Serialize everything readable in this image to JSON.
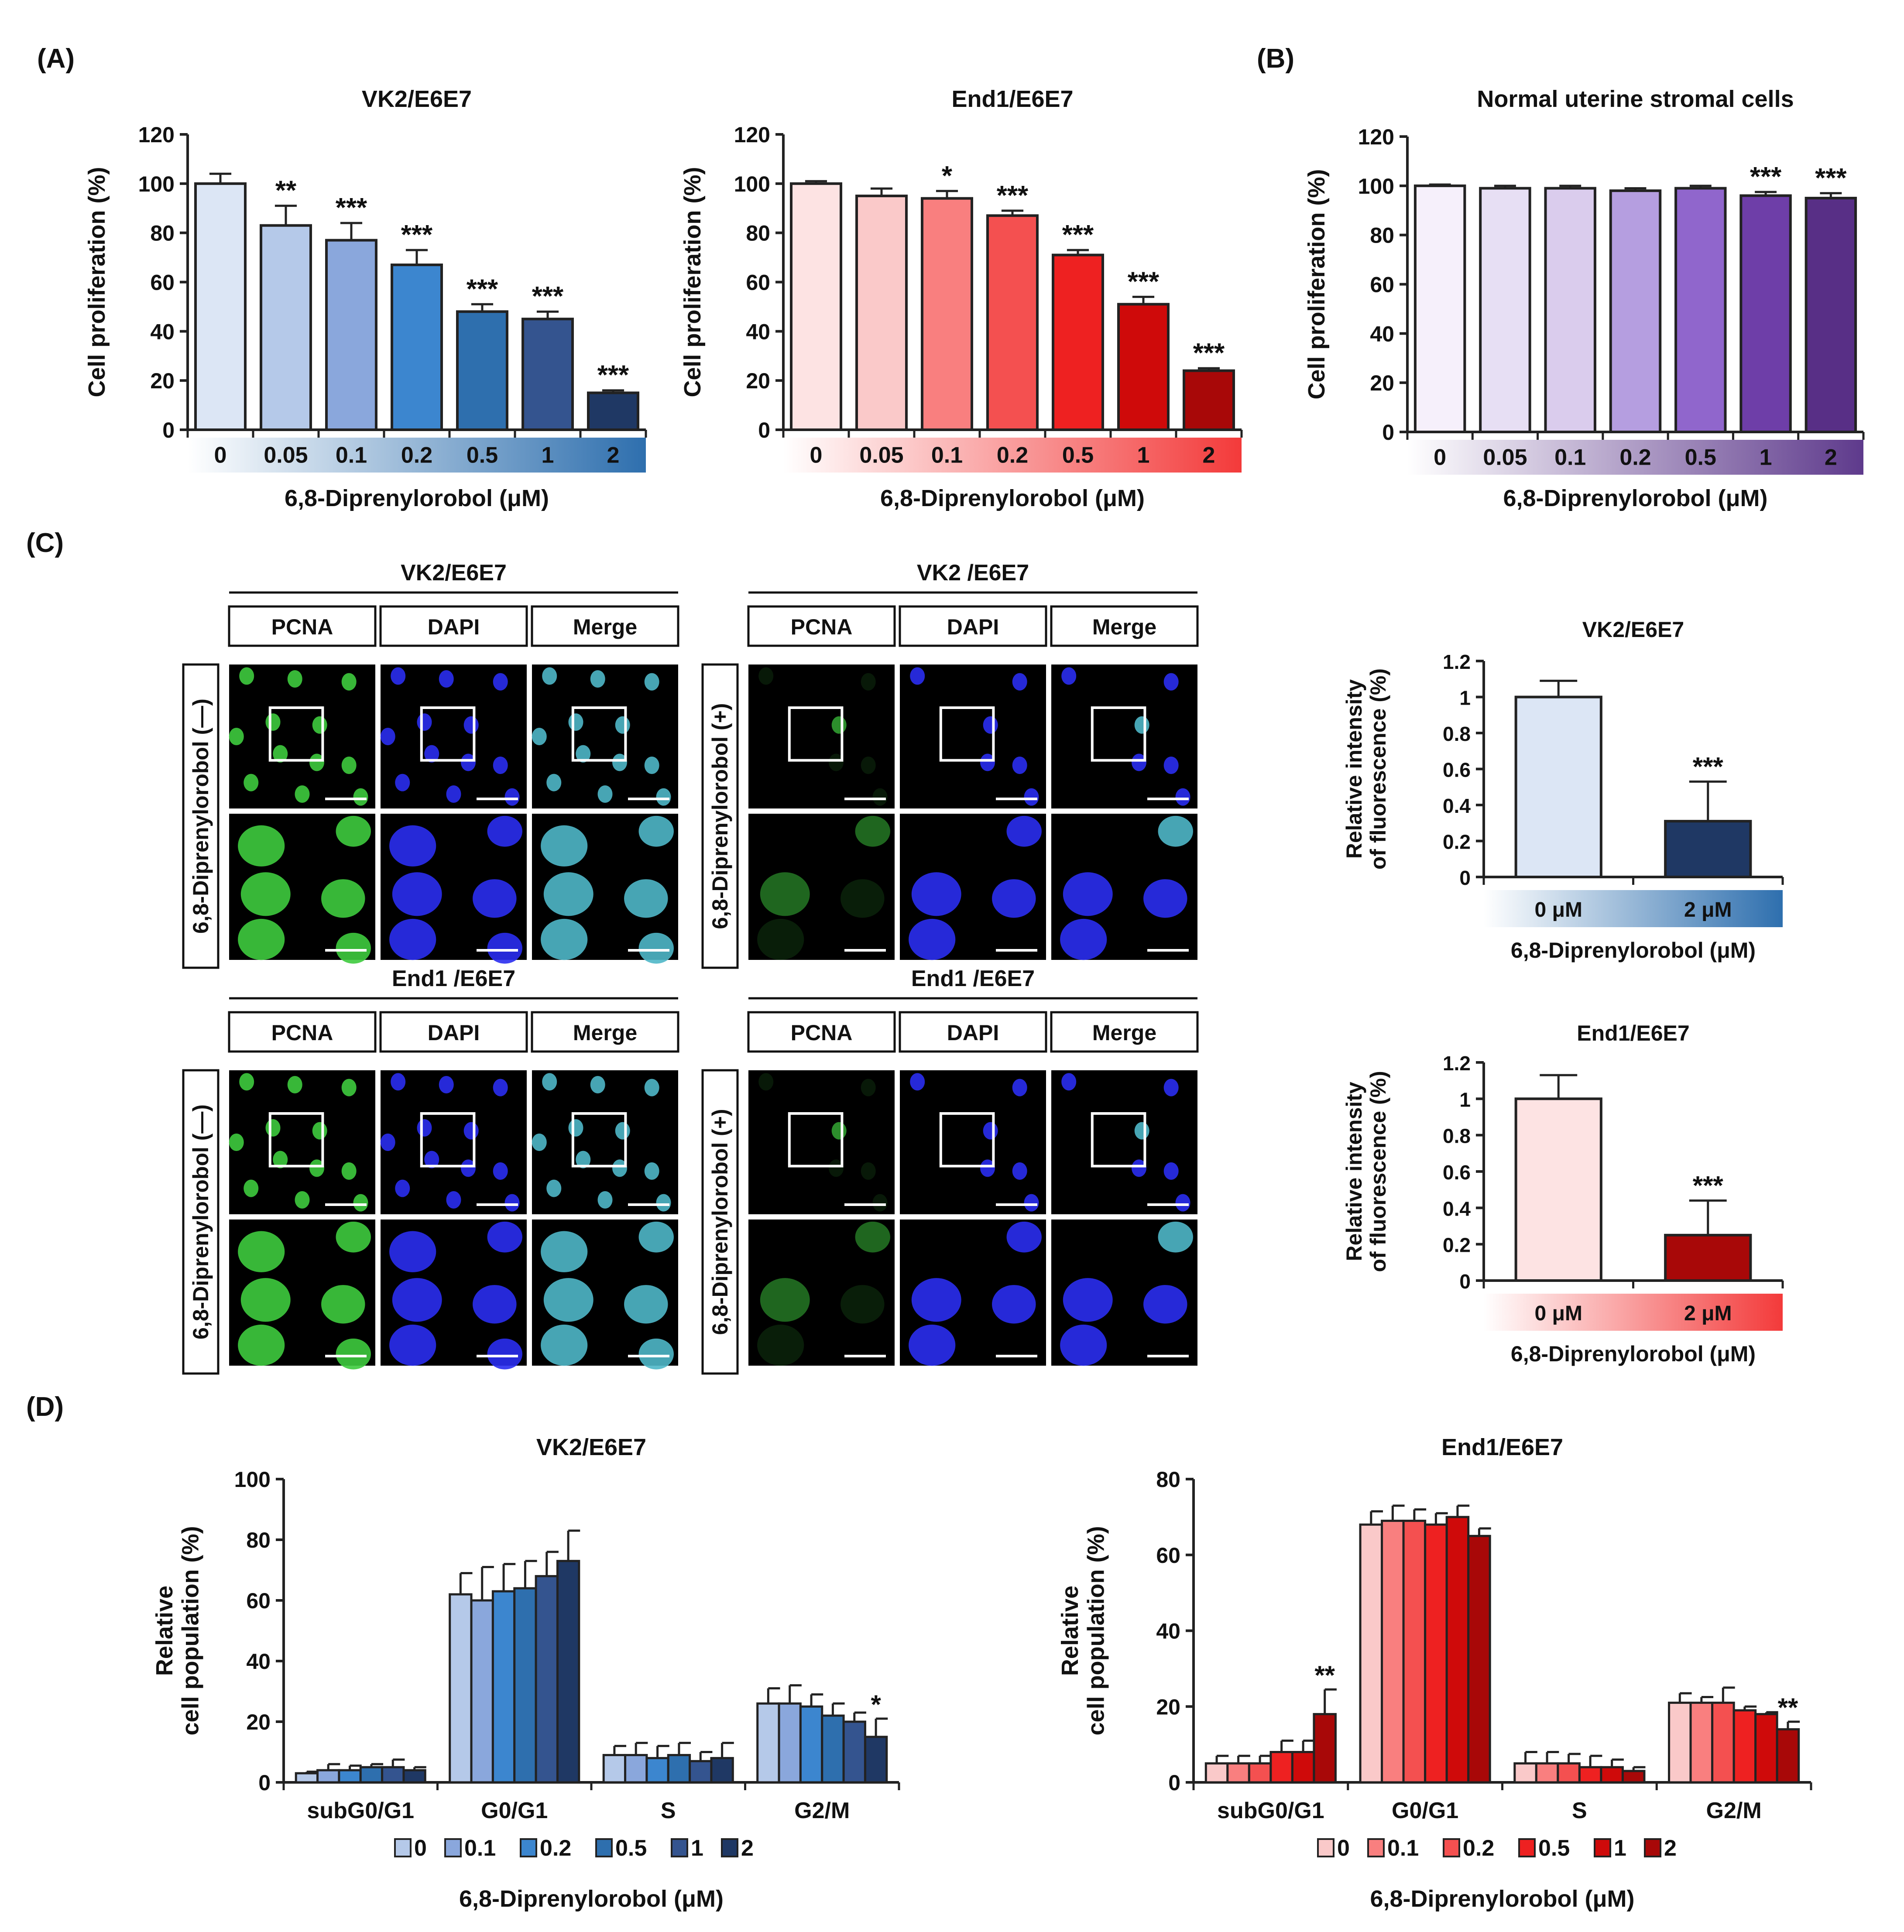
{
  "panels": {
    "A": "(A)",
    "B": "(B)",
    "C": "(C)",
    "D": "(D)"
  },
  "colors": {
    "vk2": [
      "#dce6f5",
      "#b5c9e9",
      "#8aa7dc",
      "#3c86cf",
      "#2e6fae",
      "#34548f",
      "#1f3864"
    ],
    "end1": [
      "#fde3e3",
      "#fac9c9",
      "#f97f7f",
      "#f45050",
      "#ee2121",
      "#cf0a0a",
      "#a80808"
    ],
    "normal": [
      "#f6f0fb",
      "#e7dff4",
      "#dacced",
      "#b59ee0",
      "#9066cc",
      "#6e3ea8",
      "#582f86"
    ],
    "vk2_gradient": [
      "#ffffff",
      "#2e6fae"
    ],
    "end1_gradient": [
      "#ffffff",
      "#f33a3a"
    ],
    "normal_gradient": [
      "#ffffff",
      "#5e3a8c"
    ],
    "green_nucleus": "#3ecb3e",
    "blue_nucleus": "#2a2ef0",
    "cyan_nucleus": "#4fb7c8"
  },
  "chart_data": [
    {
      "id": "A1",
      "type": "bar",
      "title": "VK2/E6E7",
      "xlabel": "6,8-Diprenylorobol (μM)",
      "ylabel": "Cell proliferation (%)",
      "ylim": [
        0,
        120
      ],
      "yticks": [
        0,
        20,
        40,
        60,
        80,
        100,
        120
      ],
      "categories": [
        "0",
        "0.05",
        "0.1",
        "0.2",
        "0.5",
        "1",
        "2"
      ],
      "values": [
        100,
        83,
        77,
        67,
        48,
        45,
        15
      ],
      "errors": [
        4,
        8,
        7,
        6,
        3,
        3,
        1
      ],
      "significance": [
        "",
        "**",
        "***",
        "***",
        "***",
        "***",
        "***"
      ],
      "palette": "vk2",
      "gradient": "vk2_gradient"
    },
    {
      "id": "A2",
      "type": "bar",
      "title": "End1/E6E7",
      "xlabel": "6,8-Diprenylorobol (μM)",
      "ylabel": "Cell proliferation (%)",
      "ylim": [
        0,
        120
      ],
      "yticks": [
        0,
        20,
        40,
        60,
        80,
        100,
        120
      ],
      "categories": [
        "0",
        "0.05",
        "0.1",
        "0.2",
        "0.5",
        "1",
        "2"
      ],
      "values": [
        100,
        95,
        94,
        87,
        71,
        51,
        24
      ],
      "errors": [
        1,
        3,
        3,
        2,
        2,
        3,
        1
      ],
      "significance": [
        "",
        "",
        "*",
        "***",
        "***",
        "***",
        "***"
      ],
      "palette": "end1",
      "gradient": "end1_gradient"
    },
    {
      "id": "B",
      "type": "bar",
      "title": "Normal uterine stromal cells",
      "xlabel": "6,8-Diprenylorobol (μM)",
      "ylabel": "Cell proliferation (%)",
      "ylim": [
        0,
        120
      ],
      "yticks": [
        0,
        20,
        40,
        60,
        80,
        100,
        120
      ],
      "categories": [
        "0",
        "0.05",
        "0.1",
        "0.2",
        "0.5",
        "1",
        "2"
      ],
      "values": [
        100,
        99,
        99,
        98,
        99,
        96,
        95
      ],
      "errors": [
        0.5,
        1,
        1,
        1,
        1,
        1.5,
        2
      ],
      "significance": [
        "",
        "",
        "",
        "",
        "",
        "***",
        "***"
      ],
      "palette": "normal",
      "gradient": "normal_gradient"
    },
    {
      "id": "C1",
      "type": "bar",
      "title": "VK2/E6E7",
      "xlabel": "6,8-Diprenylorobol (μM)",
      "ylabel": "Relative intensity of fluorescence (%)",
      "ylabel_lines": [
        "Relative intensity",
        "of fluorescence (%)"
      ],
      "ylim": [
        0,
        1.2
      ],
      "yticks": [
        0,
        0.2,
        0.4,
        0.6,
        0.8,
        1,
        1.2
      ],
      "ytick_labels": [
        "0",
        "0.2",
        "0.4",
        "0.6",
        "0.8",
        "1",
        "1.2"
      ],
      "categories": [
        "0 μM",
        "2 μM"
      ],
      "values": [
        1.0,
        0.31
      ],
      "errors": [
        0.09,
        0.22
      ],
      "significance": [
        "",
        "***"
      ],
      "colors": [
        "#dce6f5",
        "#1f3864"
      ],
      "gradient": "vk2_gradient"
    },
    {
      "id": "C2",
      "type": "bar",
      "title": "End1/E6E7",
      "xlabel": "6,8-Diprenylorobol (μM)",
      "ylabel": "Relative intensity of fluorescence (%)",
      "ylabel_lines": [
        "Relative intensity",
        "of fluorescence (%)"
      ],
      "ylim": [
        0,
        1.2
      ],
      "yticks": [
        0,
        0.2,
        0.4,
        0.6,
        0.8,
        1,
        1.2
      ],
      "ytick_labels": [
        "0",
        "0.2",
        "0.4",
        "0.6",
        "0.8",
        "1",
        "1.2"
      ],
      "categories": [
        "0 μM",
        "2 μM"
      ],
      "values": [
        1.0,
        0.25
      ],
      "errors": [
        0.13,
        0.19
      ],
      "significance": [
        "",
        "***"
      ],
      "colors": [
        "#fde3e3",
        "#a80808"
      ],
      "gradient": "end1_gradient"
    },
    {
      "id": "D1",
      "type": "bar",
      "title": "VK2/E6E7",
      "xlabel": "6,8-Diprenylorobol (μM)",
      "ylabel": "Relative cell population (%)",
      "ylabel_lines": [
        "Relative",
        "cell population (%)"
      ],
      "ylim": [
        0,
        100
      ],
      "yticks": [
        0,
        20,
        40,
        60,
        80,
        100
      ],
      "categories": [
        "subG0/G1",
        "G0/G1",
        "S",
        "G2/M"
      ],
      "series": [
        {
          "name": "0",
          "values": [
            3,
            62,
            9,
            26
          ],
          "errors": [
            0.5,
            7,
            3,
            5
          ],
          "significance": [
            "",
            "",
            "",
            ""
          ]
        },
        {
          "name": "0.1",
          "values": [
            4,
            60,
            9,
            26
          ],
          "errors": [
            2,
            11,
            4,
            6
          ],
          "significance": [
            "",
            "",
            "",
            ""
          ]
        },
        {
          "name": "0.2",
          "values": [
            4,
            63,
            8,
            25
          ],
          "errors": [
            1.5,
            9,
            4,
            4
          ],
          "significance": [
            "",
            "",
            "",
            ""
          ]
        },
        {
          "name": "0.5",
          "values": [
            5,
            64,
            9,
            22
          ],
          "errors": [
            1,
            9,
            4,
            4
          ],
          "significance": [
            "",
            "",
            "",
            ""
          ]
        },
        {
          "name": "1",
          "values": [
            5,
            68,
            7,
            20
          ],
          "errors": [
            2.5,
            8,
            3,
            3
          ],
          "significance": [
            "",
            "",
            "",
            ""
          ]
        },
        {
          "name": "2",
          "values": [
            4,
            73,
            8,
            15
          ],
          "errors": [
            1,
            10,
            5,
            6
          ],
          "significance": [
            "",
            "",
            "",
            "*"
          ]
        }
      ],
      "palette": "vk2"
    },
    {
      "id": "D2",
      "type": "bar",
      "title": "End1/E6E7",
      "xlabel": "6,8-Diprenylorobol (μM)",
      "ylabel": "Relative cell population (%)",
      "ylabel_lines": [
        "Relative",
        "cell population (%)"
      ],
      "ylim": [
        0,
        80
      ],
      "yticks": [
        0,
        20,
        40,
        60,
        80
      ],
      "categories": [
        "subG0/G1",
        "G0/G1",
        "S",
        "G2/M"
      ],
      "series": [
        {
          "name": "0",
          "values": [
            5,
            68,
            5,
            21
          ],
          "errors": [
            2,
            3.5,
            3,
            2.5
          ],
          "significance": [
            "",
            "",
            "",
            ""
          ]
        },
        {
          "name": "0.1",
          "values": [
            5,
            69,
            5,
            21
          ],
          "errors": [
            2,
            4,
            3,
            1.5
          ],
          "significance": [
            "",
            "",
            "",
            ""
          ]
        },
        {
          "name": "0.2",
          "values": [
            5,
            69,
            5,
            21
          ],
          "errors": [
            2,
            3,
            2.5,
            4
          ],
          "significance": [
            "",
            "",
            "",
            ""
          ]
        },
        {
          "name": "0.5",
          "values": [
            8,
            68,
            4,
            19
          ],
          "errors": [
            3,
            3,
            3,
            1
          ],
          "significance": [
            "",
            "",
            "",
            ""
          ]
        },
        {
          "name": "1",
          "values": [
            8,
            70,
            4,
            18
          ],
          "errors": [
            3,
            3,
            2,
            0.5
          ],
          "significance": [
            "",
            "",
            "",
            ""
          ]
        },
        {
          "name": "2",
          "values": [
            18,
            65,
            3,
            14
          ],
          "errors": [
            6.5,
            2,
            1,
            2
          ],
          "significance": [
            "**",
            "",
            "",
            "**"
          ]
        }
      ],
      "palette": "end1"
    }
  ],
  "micrographs": {
    "stain_labels": [
      "PCNA",
      "DAPI",
      "Merge"
    ],
    "groups": [
      {
        "title": "VK2/E6E7",
        "treatment": "6,8-Diprenylorobol (—)",
        "signal": "high"
      },
      {
        "title": "VK2 /E6E7",
        "treatment": "6,8-Diprenylorobol (+)",
        "signal": "low"
      },
      {
        "title": "End1 /E6E7",
        "treatment": "6,8-Diprenylorobol (—)",
        "signal": "high"
      },
      {
        "title": "End1 /E6E7",
        "treatment": "6,8-Diprenylorobol (+)",
        "signal": "low"
      }
    ]
  }
}
